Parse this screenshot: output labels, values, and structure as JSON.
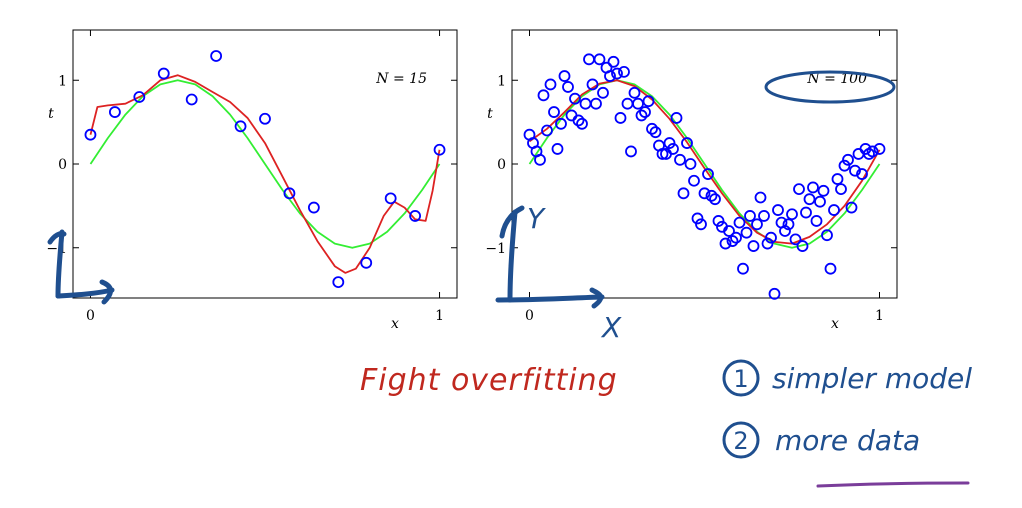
{
  "chart_data": [
    {
      "type": "scatter",
      "N_label": "N = 15",
      "xlabel": "x",
      "ylabel": "t",
      "xlim": [
        -0.05,
        1.05
      ],
      "ylim": [
        -1.6,
        1.6
      ],
      "xticks": [
        {
          "v": 0,
          "label": "0"
        },
        {
          "v": 1,
          "label": "1"
        }
      ],
      "yticks": [
        {
          "v": -1,
          "label": "−1"
        },
        {
          "v": 0,
          "label": "0"
        },
        {
          "v": 1,
          "label": "1"
        }
      ],
      "series": [
        {
          "kind": "points",
          "color": "#0000ff",
          "x": [
            0.0,
            0.07,
            0.14,
            0.21,
            0.29,
            0.36,
            0.43,
            0.5,
            0.57,
            0.64,
            0.71,
            0.79,
            0.86,
            0.93,
            1.0
          ],
          "y": [
            0.35,
            0.62,
            0.8,
            1.08,
            0.77,
            1.29,
            0.45,
            0.54,
            -0.35,
            -0.52,
            -1.41,
            -1.18,
            -0.41,
            -0.62,
            0.17
          ]
        },
        {
          "kind": "true-curve",
          "color": "#33ee33",
          "x": [
            0,
            0.05,
            0.1,
            0.15,
            0.2,
            0.25,
            0.3,
            0.35,
            0.4,
            0.45,
            0.5,
            0.55,
            0.6,
            0.65,
            0.7,
            0.75,
            0.8,
            0.85,
            0.9,
            0.95,
            1
          ],
          "y": [
            0,
            0.31,
            0.59,
            0.81,
            0.95,
            1.0,
            0.95,
            0.81,
            0.59,
            0.31,
            0,
            -0.31,
            -0.59,
            -0.81,
            -0.95,
            -1.0,
            -0.95,
            -0.81,
            -0.59,
            -0.31,
            0
          ]
        },
        {
          "kind": "fitted-curve",
          "color": "#dd2222",
          "x": [
            0,
            0.02,
            0.05,
            0.1,
            0.15,
            0.2,
            0.25,
            0.3,
            0.35,
            0.4,
            0.45,
            0.5,
            0.55,
            0.6,
            0.65,
            0.7,
            0.73,
            0.76,
            0.8,
            0.84,
            0.87,
            0.9,
            0.93,
            0.96,
            0.98,
            1
          ],
          "y": [
            0.35,
            0.68,
            0.7,
            0.72,
            0.82,
            1.0,
            1.06,
            0.98,
            0.86,
            0.74,
            0.55,
            0.25,
            -0.15,
            -0.55,
            -0.92,
            -1.22,
            -1.3,
            -1.25,
            -1.0,
            -0.62,
            -0.45,
            -0.52,
            -0.66,
            -0.68,
            -0.32,
            0.17
          ]
        }
      ]
    },
    {
      "type": "scatter",
      "N_label": "N = 100",
      "xlabel": "x",
      "ylabel": "t",
      "xlim": [
        -0.05,
        1.05
      ],
      "ylim": [
        -1.6,
        1.6
      ],
      "xticks": [
        {
          "v": 0,
          "label": "0"
        },
        {
          "v": 1,
          "label": "1"
        }
      ],
      "yticks": [
        {
          "v": -1,
          "label": "−1"
        },
        {
          "v": 0,
          "label": "0"
        },
        {
          "v": 1,
          "label": "1"
        }
      ],
      "series": [
        {
          "kind": "points",
          "color": "#0000ff",
          "x": [
            0.0,
            0.01,
            0.02,
            0.03,
            0.04,
            0.05,
            0.06,
            0.07,
            0.08,
            0.09,
            0.1,
            0.11,
            0.12,
            0.13,
            0.14,
            0.15,
            0.16,
            0.17,
            0.18,
            0.19,
            0.2,
            0.21,
            0.22,
            0.23,
            0.24,
            0.25,
            0.26,
            0.27,
            0.28,
            0.29,
            0.3,
            0.31,
            0.32,
            0.33,
            0.34,
            0.35,
            0.36,
            0.37,
            0.38,
            0.39,
            0.4,
            0.41,
            0.42,
            0.43,
            0.44,
            0.45,
            0.46,
            0.47,
            0.48,
            0.49,
            0.5,
            0.51,
            0.52,
            0.53,
            0.54,
            0.55,
            0.56,
            0.57,
            0.58,
            0.59,
            0.6,
            0.61,
            0.62,
            0.63,
            0.64,
            0.65,
            0.66,
            0.67,
            0.68,
            0.69,
            0.7,
            0.71,
            0.72,
            0.73,
            0.74,
            0.75,
            0.76,
            0.77,
            0.78,
            0.79,
            0.8,
            0.81,
            0.82,
            0.83,
            0.84,
            0.85,
            0.86,
            0.87,
            0.88,
            0.89,
            0.9,
            0.91,
            0.92,
            0.93,
            0.94,
            0.95,
            0.96,
            0.97,
            0.98,
            1.0
          ],
          "y": [
            0.35,
            0.25,
            0.15,
            0.05,
            0.82,
            0.4,
            0.95,
            0.62,
            0.18,
            0.48,
            1.05,
            0.92,
            0.58,
            0.78,
            0.52,
            0.48,
            0.72,
            1.25,
            0.95,
            0.72,
            1.25,
            0.85,
            1.15,
            1.05,
            1.22,
            1.08,
            0.55,
            1.1,
            0.72,
            0.15,
            0.85,
            0.72,
            0.58,
            0.62,
            0.75,
            0.42,
            0.38,
            0.22,
            0.12,
            0.12,
            0.25,
            0.18,
            0.55,
            0.05,
            -0.35,
            0.25,
            0.0,
            -0.2,
            -0.65,
            -0.72,
            -0.35,
            -0.12,
            -0.38,
            -0.42,
            -0.68,
            -0.75,
            -0.95,
            -0.8,
            -0.92,
            -0.88,
            -0.7,
            -1.25,
            -0.82,
            -0.62,
            -0.98,
            -0.72,
            -0.4,
            -0.62,
            -0.95,
            -0.88,
            -1.55,
            -0.55,
            -0.7,
            -0.8,
            -0.72,
            -0.6,
            -0.9,
            -0.3,
            -0.98,
            -0.58,
            -0.42,
            -0.28,
            -0.68,
            -0.45,
            -0.32,
            -0.85,
            -1.25,
            -0.55,
            -0.18,
            -0.3,
            -0.02,
            0.05,
            -0.52,
            -0.08,
            0.12,
            -0.12,
            0.18,
            0.12,
            0.15,
            0.18
          ]
        },
        {
          "kind": "true-curve",
          "color": "#33ee33",
          "x": [
            0,
            0.05,
            0.1,
            0.15,
            0.2,
            0.25,
            0.3,
            0.35,
            0.4,
            0.45,
            0.5,
            0.55,
            0.6,
            0.65,
            0.7,
            0.75,
            0.8,
            0.85,
            0.9,
            0.95,
            1
          ],
          "y": [
            0,
            0.31,
            0.59,
            0.81,
            0.95,
            1.0,
            0.95,
            0.81,
            0.59,
            0.31,
            0,
            -0.31,
            -0.59,
            -0.81,
            -0.95,
            -1.0,
            -0.95,
            -0.81,
            -0.59,
            -0.31,
            0
          ]
        },
        {
          "kind": "fitted-curve",
          "color": "#dd2222",
          "x": [
            0,
            0.05,
            0.1,
            0.15,
            0.2,
            0.25,
            0.3,
            0.35,
            0.4,
            0.45,
            0.5,
            0.55,
            0.6,
            0.65,
            0.7,
            0.75,
            0.8,
            0.85,
            0.9,
            0.95,
            1
          ],
          "y": [
            0.27,
            0.42,
            0.62,
            0.83,
            0.96,
            1.0,
            0.93,
            0.77,
            0.54,
            0.26,
            -0.05,
            -0.35,
            -0.62,
            -0.82,
            -0.93,
            -0.95,
            -0.87,
            -0.72,
            -0.5,
            -0.2,
            0.17
          ]
        }
      ]
    }
  ],
  "annotations": {
    "left_axis_label": "",
    "right_axis_y": "Y",
    "right_axis_x": "X",
    "fight_text": "Fight overfitting",
    "item1_num": "1",
    "item1_text": "simpler model",
    "item2_num": "2",
    "item2_text": "more data"
  },
  "colors": {
    "ink_blue": "#1f4f8f",
    "ink_red": "#c0281f",
    "ink_purple": "#7a3d9a"
  }
}
